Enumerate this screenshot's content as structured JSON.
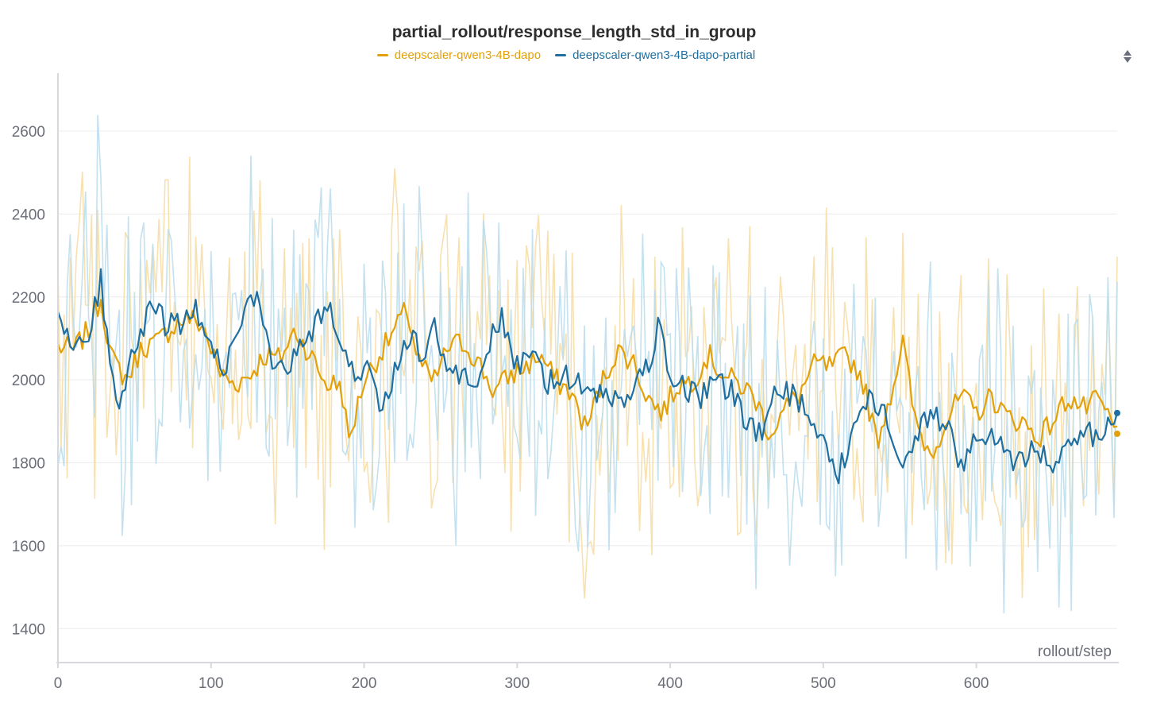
{
  "chart_data": {
    "type": "line",
    "title": "partial_rollout/response_length_std_in_group",
    "xlabel": "rollout/step",
    "ylabel": "",
    "xlim": [
      0,
      692
    ],
    "ylim": [
      1320,
      2740
    ],
    "x_ticks": [
      "0",
      "100",
      "200",
      "300",
      "400",
      "500",
      "600"
    ],
    "y_ticks": [
      "1400",
      "1600",
      "1800",
      "2000",
      "2200",
      "2400",
      "2600"
    ],
    "grid": true,
    "legend_position": "top-center",
    "series": [
      {
        "name": "deepscaler-qwen3-4B-dapo",
        "color": "#e3a008",
        "raw_color": "#f7dca3",
        "points": [
          [
            0,
            2080
          ],
          [
            10,
            2070
          ],
          [
            20,
            2120
          ],
          [
            28,
            2200
          ],
          [
            35,
            2050
          ],
          [
            45,
            2000
          ],
          [
            55,
            2080
          ],
          [
            65,
            2090
          ],
          [
            75,
            2130
          ],
          [
            85,
            2150
          ],
          [
            95,
            2130
          ],
          [
            105,
            2020
          ],
          [
            115,
            1990
          ],
          [
            125,
            2010
          ],
          [
            135,
            2060
          ],
          [
            145,
            2050
          ],
          [
            155,
            2120
          ],
          [
            165,
            2060
          ],
          [
            175,
            1990
          ],
          [
            185,
            1990
          ],
          [
            190,
            1850
          ],
          [
            200,
            2000
          ],
          [
            210,
            2060
          ],
          [
            220,
            2120
          ],
          [
            228,
            2170
          ],
          [
            235,
            2050
          ],
          [
            245,
            1990
          ],
          [
            255,
            2080
          ],
          [
            265,
            2090
          ],
          [
            275,
            2040
          ],
          [
            285,
            1970
          ],
          [
            295,
            2010
          ],
          [
            305,
            2030
          ],
          [
            315,
            2060
          ],
          [
            325,
            2000
          ],
          [
            335,
            1970
          ],
          [
            345,
            1880
          ],
          [
            355,
            1990
          ],
          [
            365,
            2070
          ],
          [
            375,
            2050
          ],
          [
            385,
            1960
          ],
          [
            395,
            1920
          ],
          [
            405,
            1990
          ],
          [
            415,
            2000
          ],
          [
            425,
            2060
          ],
          [
            435,
            2010
          ],
          [
            445,
            1990
          ],
          [
            455,
            1960
          ],
          [
            465,
            1870
          ],
          [
            475,
            1930
          ],
          [
            485,
            1970
          ],
          [
            495,
            2040
          ],
          [
            505,
            2030
          ],
          [
            515,
            2060
          ],
          [
            525,
            2010
          ],
          [
            535,
            1850
          ],
          [
            545,
            1980
          ],
          [
            552,
            2090
          ],
          [
            560,
            1900
          ],
          [
            570,
            1820
          ],
          [
            580,
            1900
          ],
          [
            590,
            1960
          ],
          [
            600,
            1920
          ],
          [
            610,
            1960
          ],
          [
            620,
            1910
          ],
          [
            630,
            1900
          ],
          [
            640,
            1860
          ],
          [
            650,
            1900
          ],
          [
            660,
            1960
          ],
          [
            670,
            1930
          ],
          [
            680,
            1950
          ],
          [
            692,
            1870
          ]
        ],
        "current_value": 1870
      },
      {
        "name": "deepscaler-qwen3-4B-dapo-partial",
        "color": "#1f6fa0",
        "raw_color": "#b9dcec",
        "points": [
          [
            0,
            2180
          ],
          [
            10,
            2070
          ],
          [
            20,
            2110
          ],
          [
            28,
            2240
          ],
          [
            35,
            2010
          ],
          [
            40,
            1960
          ],
          [
            50,
            2070
          ],
          [
            62,
            2200
          ],
          [
            70,
            2130
          ],
          [
            80,
            2140
          ],
          [
            90,
            2180
          ],
          [
            100,
            2080
          ],
          [
            110,
            2030
          ],
          [
            120,
            2150
          ],
          [
            130,
            2200
          ],
          [
            140,
            2020
          ],
          [
            150,
            2030
          ],
          [
            160,
            2080
          ],
          [
            170,
            2140
          ],
          [
            178,
            2180
          ],
          [
            185,
            2080
          ],
          [
            195,
            2010
          ],
          [
            205,
            2030
          ],
          [
            210,
            1930
          ],
          [
            220,
            2020
          ],
          [
            230,
            2110
          ],
          [
            240,
            2050
          ],
          [
            245,
            2150
          ],
          [
            255,
            2010
          ],
          [
            265,
            2020
          ],
          [
            275,
            1990
          ],
          [
            285,
            2130
          ],
          [
            290,
            2150
          ],
          [
            300,
            2030
          ],
          [
            310,
            2050
          ],
          [
            320,
            1990
          ],
          [
            330,
            2020
          ],
          [
            340,
            1990
          ],
          [
            350,
            1960
          ],
          [
            360,
            1960
          ],
          [
            370,
            1950
          ],
          [
            380,
            2000
          ],
          [
            390,
            2080
          ],
          [
            393,
            2150
          ],
          [
            400,
            2000
          ],
          [
            410,
            1980
          ],
          [
            420,
            1960
          ],
          [
            430,
            2000
          ],
          [
            440,
            1970
          ],
          [
            450,
            1900
          ],
          [
            460,
            1860
          ],
          [
            470,
            1980
          ],
          [
            480,
            1960
          ],
          [
            490,
            1920
          ],
          [
            500,
            1850
          ],
          [
            510,
            1770
          ],
          [
            520,
            1890
          ],
          [
            530,
            1950
          ],
          [
            540,
            1920
          ],
          [
            550,
            1800
          ],
          [
            560,
            1860
          ],
          [
            570,
            1920
          ],
          [
            580,
            1890
          ],
          [
            590,
            1800
          ],
          [
            600,
            1850
          ],
          [
            610,
            1870
          ],
          [
            620,
            1810
          ],
          [
            630,
            1810
          ],
          [
            640,
            1840
          ],
          [
            650,
            1790
          ],
          [
            660,
            1850
          ],
          [
            670,
            1880
          ],
          [
            680,
            1860
          ],
          [
            692,
            1920
          ]
        ],
        "current_value": 1920
      }
    ]
  },
  "controls": {
    "sort_icon": "sort-updown-icon"
  }
}
